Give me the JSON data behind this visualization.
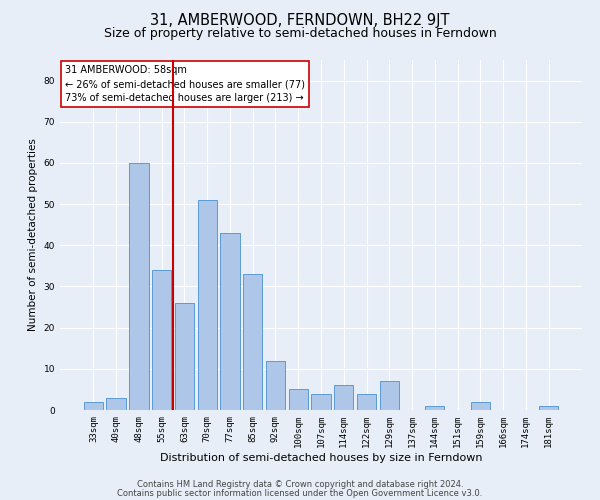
{
  "title": "31, AMBERWOOD, FERNDOWN, BH22 9JT",
  "subtitle": "Size of property relative to semi-detached houses in Ferndown",
  "xlabel": "Distribution of semi-detached houses by size in Ferndown",
  "ylabel": "Number of semi-detached properties",
  "categories": [
    "33sqm",
    "40sqm",
    "48sqm",
    "55sqm",
    "63sqm",
    "70sqm",
    "77sqm",
    "85sqm",
    "92sqm",
    "100sqm",
    "107sqm",
    "114sqm",
    "122sqm",
    "129sqm",
    "137sqm",
    "144sqm",
    "151sqm",
    "159sqm",
    "166sqm",
    "174sqm",
    "181sqm"
  ],
  "values": [
    2,
    3,
    60,
    34,
    26,
    51,
    43,
    33,
    12,
    5,
    4,
    6,
    4,
    7,
    0,
    1,
    0,
    2,
    0,
    0,
    1
  ],
  "bar_color": "#aec6e8",
  "bar_edge_color": "#5b9bd5",
  "vline_x": 3.5,
  "vline_color": "#cc0000",
  "annotation_text": "31 AMBERWOOD: 58sqm\n← 26% of semi-detached houses are smaller (77)\n73% of semi-detached houses are larger (213) →",
  "annotation_box_color": "#ffffff",
  "annotation_box_edge": "#cc0000",
  "footer1": "Contains HM Land Registry data © Crown copyright and database right 2024.",
  "footer2": "Contains public sector information licensed under the Open Government Licence v3.0.",
  "ylim": [
    0,
    85
  ],
  "yticks": [
    0,
    10,
    20,
    30,
    40,
    50,
    60,
    70,
    80
  ],
  "background_color": "#e8eef8",
  "grid_color": "#ffffff",
  "title_fontsize": 10.5,
  "subtitle_fontsize": 9,
  "axis_label_fontsize": 7.5,
  "tick_fontsize": 6.5,
  "footer_fontsize": 6.0,
  "annotation_fontsize": 7.0
}
